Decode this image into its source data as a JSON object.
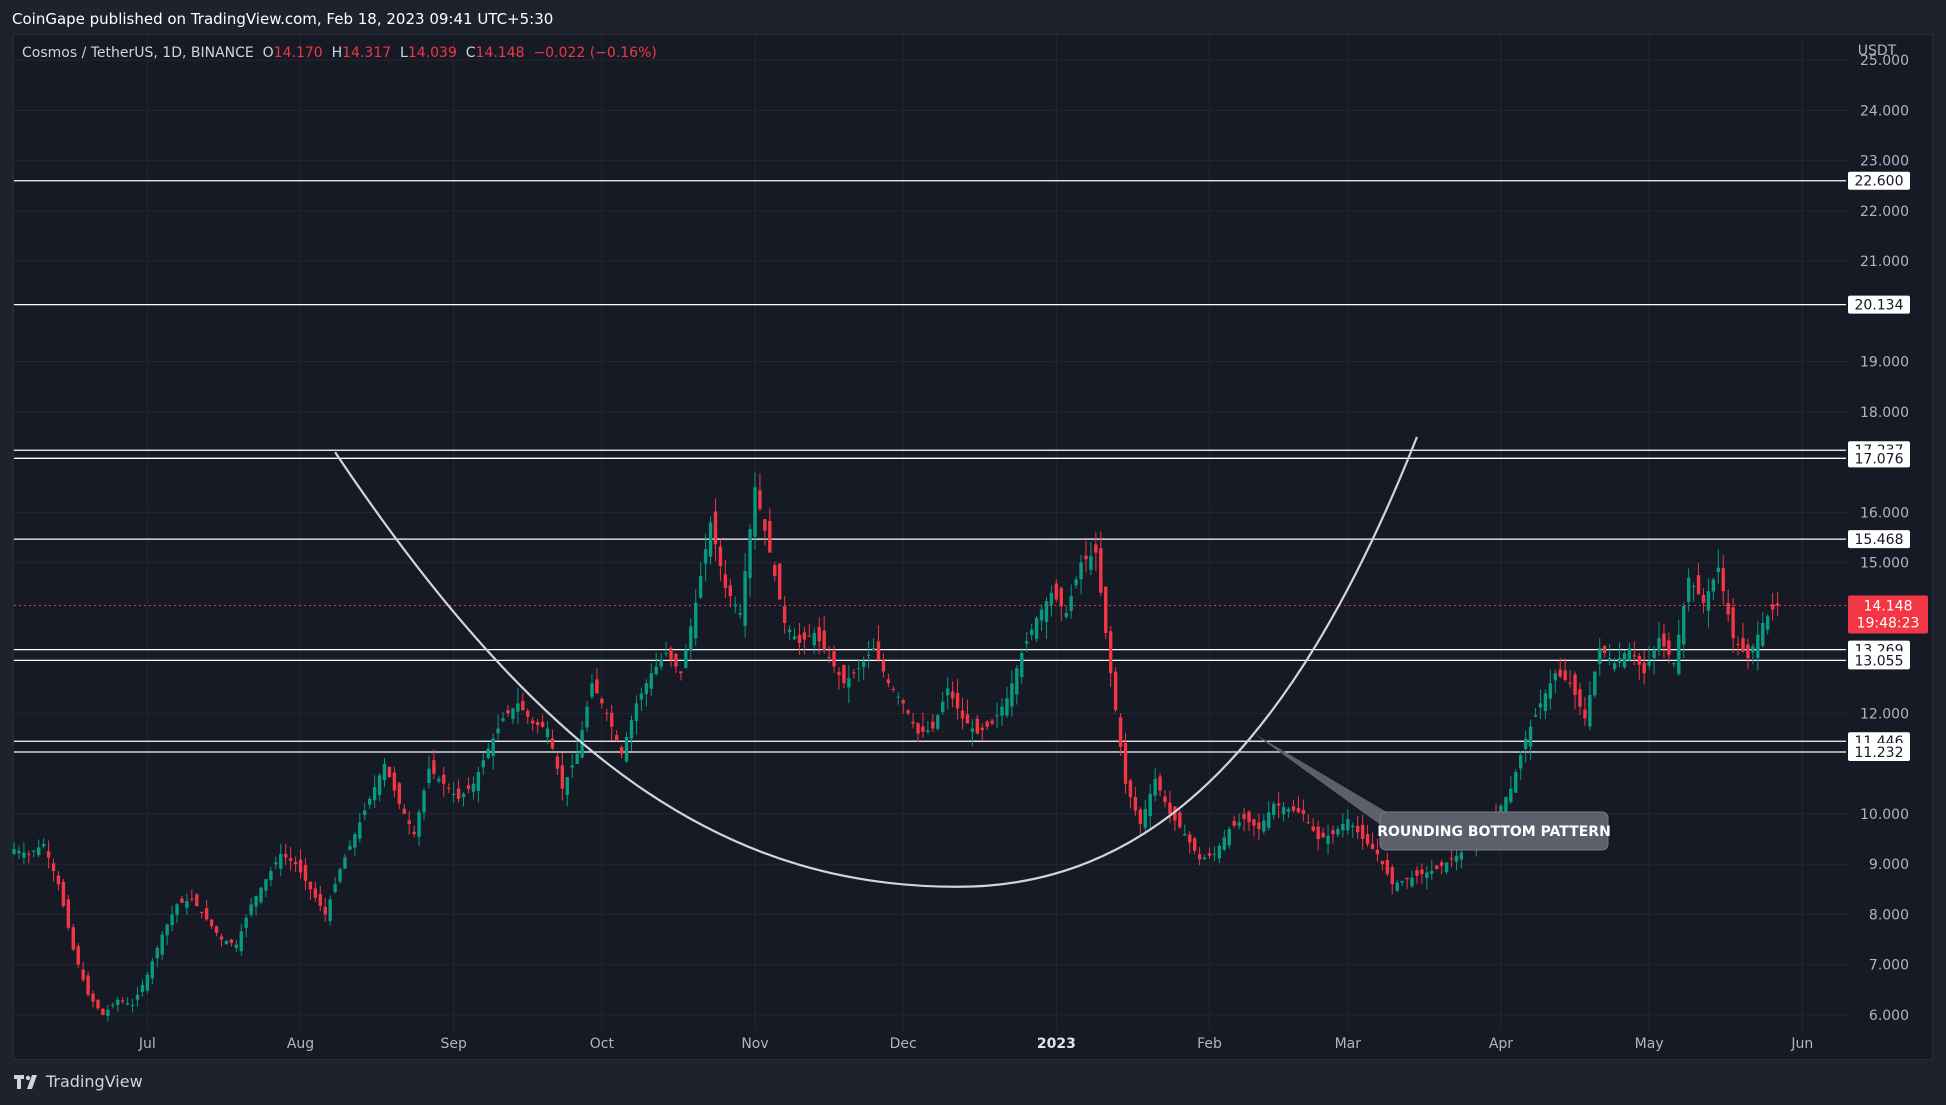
{
  "publisher_line": "CoinGape published on TradingView.com, Feb 18, 2023 09:41 UTC+5:30",
  "legend": {
    "symbol": "Cosmos / TetherUS, 1D, BINANCE",
    "o_label": "O",
    "o_value": "14.170",
    "h_label": "H",
    "h_value": "14.317",
    "l_label": "L",
    "l_value": "14.039",
    "c_label": "C",
    "c_value": "14.148",
    "change": "−0.022 (−0.16%)"
  },
  "footer": {
    "brand": "TradingView"
  },
  "colors": {
    "up": "#089981",
    "down": "#f23645",
    "grid": "#232733",
    "text": "#b2b5be",
    "background": "#161a25",
    "curve": "#d1d4dc",
    "callout": "#5d606b"
  },
  "chart_data": {
    "type": "candlestick",
    "title": "",
    "currency_label": "USDT",
    "ylim": [
      5.7,
      25.5
    ],
    "y_ticks": [
      "25.000",
      "24.000",
      "23.000",
      "22.000",
      "21.000",
      "19.000",
      "18.000",
      "16.000",
      "15.000",
      "12.000",
      "10.000",
      "9.000",
      "8.000",
      "7.000",
      "6.000"
    ],
    "x_ticks": [
      {
        "label": "Jul",
        "date": "2022-07-01"
      },
      {
        "label": "Aug",
        "date": "2022-08-01"
      },
      {
        "label": "Sep",
        "date": "2022-09-01"
      },
      {
        "label": "Oct",
        "date": "2022-10-01"
      },
      {
        "label": "Nov",
        "date": "2022-11-01"
      },
      {
        "label": "Dec",
        "date": "2022-12-01"
      },
      {
        "label": "2023",
        "date": "2023-01-01"
      },
      {
        "label": "Feb",
        "date": "2023-02-01"
      },
      {
        "label": "Mar",
        "date": "2023-03-01"
      },
      {
        "label": "Apr",
        "date": "2023-04-01"
      },
      {
        "label": "May",
        "date": "2023-05-01"
      },
      {
        "label": "Jun",
        "date": "2023-06-01"
      }
    ],
    "x_start_date": "2022-06-04",
    "candle_anchor_closes": [
      [
        0,
        9.3
      ],
      [
        3,
        9.2
      ],
      [
        6,
        9.4
      ],
      [
        9,
        8.6
      ],
      [
        12,
        7.3
      ],
      [
        15,
        6.4
      ],
      [
        18,
        6.0
      ],
      [
        21,
        6.3
      ],
      [
        24,
        6.2
      ],
      [
        27,
        6.8
      ],
      [
        30,
        7.6
      ],
      [
        33,
        8.2
      ],
      [
        36,
        8.3
      ],
      [
        39,
        7.9
      ],
      [
        42,
        7.5
      ],
      [
        45,
        7.4
      ],
      [
        48,
        8.2
      ],
      [
        51,
        8.7
      ],
      [
        54,
        9.2
      ],
      [
        57,
        9.0
      ],
      [
        60,
        8.5
      ],
      [
        63,
        8.0
      ],
      [
        66,
        8.9
      ],
      [
        69,
        9.6
      ],
      [
        72,
        10.3
      ],
      [
        75,
        11.0
      ],
      [
        78,
        10.2
      ],
      [
        81,
        9.6
      ],
      [
        84,
        10.9
      ],
      [
        87,
        10.6
      ],
      [
        90,
        10.3
      ],
      [
        93,
        10.6
      ],
      [
        96,
        11.3
      ],
      [
        99,
        11.9
      ],
      [
        102,
        12.2
      ],
      [
        105,
        11.8
      ],
      [
        108,
        11.7
      ],
      [
        111,
        10.5
      ],
      [
        114,
        11.2
      ],
      [
        117,
        12.6
      ],
      [
        120,
        12.0
      ],
      [
        123,
        11.2
      ],
      [
        126,
        12.2
      ],
      [
        129,
        12.8
      ],
      [
        132,
        13.2
      ],
      [
        135,
        12.8
      ],
      [
        138,
        14.2
      ],
      [
        141,
        15.8
      ],
      [
        144,
        14.5
      ],
      [
        147,
        14.0
      ],
      [
        150,
        16.5
      ],
      [
        153,
        15.2
      ],
      [
        156,
        13.8
      ],
      [
        159,
        13.4
      ],
      [
        162,
        13.6
      ],
      [
        165,
        13.1
      ],
      [
        168,
        12.6
      ],
      [
        171,
        12.9
      ],
      [
        174,
        13.3
      ],
      [
        177,
        12.6
      ],
      [
        180,
        12.2
      ],
      [
        183,
        11.6
      ],
      [
        186,
        11.7
      ],
      [
        189,
        12.5
      ],
      [
        192,
        11.9
      ],
      [
        195,
        11.6
      ],
      [
        198,
        11.8
      ],
      [
        201,
        12.3
      ],
      [
        204,
        13.2
      ],
      [
        207,
        13.9
      ],
      [
        210,
        14.4
      ],
      [
        213,
        14.0
      ],
      [
        216,
        15.0
      ],
      [
        219,
        15.2
      ],
      [
        222,
        12.8
      ],
      [
        225,
        10.6
      ],
      [
        228,
        9.8
      ],
      [
        231,
        10.7
      ],
      [
        234,
        10.0
      ],
      [
        237,
        9.6
      ],
      [
        240,
        9.1
      ],
      [
        243,
        9.2
      ],
      [
        246,
        9.7
      ],
      [
        249,
        9.9
      ],
      [
        252,
        9.7
      ],
      [
        255,
        10.2
      ],
      [
        258,
        10.1
      ],
      [
        261,
        10.0
      ],
      [
        264,
        9.5
      ],
      [
        267,
        9.6
      ],
      [
        270,
        9.9
      ],
      [
        273,
        9.5
      ],
      [
        276,
        9.2
      ],
      [
        279,
        8.6
      ],
      [
        282,
        8.7
      ],
      [
        285,
        8.8
      ],
      [
        288,
        8.9
      ],
      [
        291,
        9.1
      ],
      [
        294,
        9.3
      ],
      [
        297,
        9.6
      ],
      [
        300,
        10.0
      ],
      [
        303,
        10.5
      ],
      [
        306,
        11.5
      ],
      [
        309,
        12.2
      ],
      [
        312,
        12.8
      ],
      [
        315,
        12.6
      ],
      [
        318,
        11.9
      ],
      [
        321,
        13.3
      ],
      [
        324,
        13.0
      ],
      [
        327,
        13.3
      ],
      [
        330,
        12.8
      ],
      [
        333,
        13.5
      ],
      [
        336,
        13.0
      ],
      [
        339,
        14.7
      ],
      [
        342,
        14.2
      ],
      [
        345,
        14.9
      ],
      [
        348,
        13.5
      ],
      [
        351,
        13.1
      ],
      [
        354,
        13.8
      ],
      [
        357,
        14.2
      ]
    ],
    "candles_last_close": 14.148,
    "current_price_label": "14.148",
    "countdown_label": "19:48:23",
    "horizontal_levels": [
      "22.600",
      "20.134",
      "17.237",
      "17.076",
      "15.468",
      "13.269",
      "13.055",
      "11.446",
      "11.232"
    ],
    "curve": {
      "start": {
        "date": "2022-08-08",
        "price": 17.2
      },
      "bottom": {
        "date": "2022-12-12",
        "price": 8.55
      },
      "end": {
        "date": "2023-03-15",
        "price": 17.5
      }
    },
    "annotation": {
      "text": "ROUNDING BOTTOM PATTERN",
      "arrow_target": {
        "date": "2023-02-10",
        "price": 11.6
      }
    }
  }
}
